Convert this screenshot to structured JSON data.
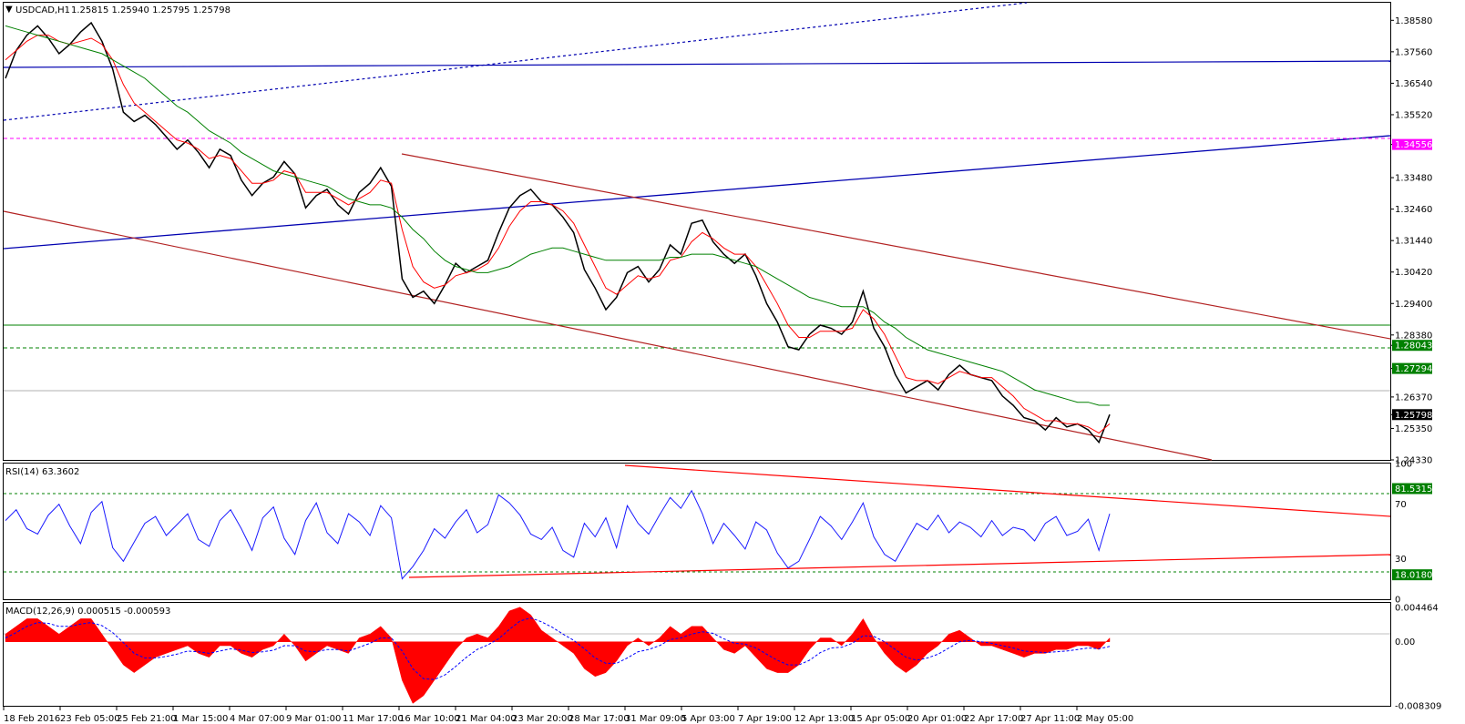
{
  "header": {
    "symbol": "USDCAD,H1",
    "ohlc": "1.25815 1.25940 1.25795 1.25798",
    "rsi": "RSI(14) 63.3602",
    "macd": "MACD(12,26,9) 0.000515 -0.000593"
  },
  "colors": {
    "price": "#000000",
    "ma_fast": "#ff0000",
    "ma_slow": "#008000",
    "blue_line": "#0000b0",
    "channel": "#b22222",
    "rsi_line": "#1a1aff",
    "rsi_trend": "#ff0000",
    "macd_hist": "#ff0000",
    "macd_signal": "#0000ff",
    "magenta_level": "#ff00ff",
    "green_level": "#008000",
    "current_price": "#000000"
  },
  "chart_data": [
    {
      "type": "line",
      "panel": "price",
      "title": "USDCAD,H1",
      "ylim": [
        1.2433,
        1.3915
      ],
      "grid": false,
      "y_ticks": [
        "1.38580",
        "1.37560",
        "1.36540",
        "1.35520",
        "1.34556",
        "1.33480",
        "1.32460",
        "1.31440",
        "1.30420",
        "1.29400",
        "1.28380",
        "1.28043",
        "1.27294",
        "1.26370",
        "1.25798",
        "1.25350",
        "1.24330"
      ],
      "x_ticks": [
        "18 Feb 2016",
        "23 Feb 05:00",
        "25 Feb 21:00",
        "1 Mar 15:00",
        "4 Mar 07:00",
        "9 Mar 01:00",
        "11 Mar 17:00",
        "16 Mar 10:00",
        "21 Mar 04:00",
        "23 Mar 20:00",
        "28 Mar 17:00",
        "31 Mar 09:00",
        "5 Apr 03:00",
        "7 Apr 19:00",
        "12 Apr 13:00",
        "15 Apr 05:00",
        "20 Apr 01:00",
        "22 Apr 17:00",
        "27 Apr 11:00",
        "2 May 05:00"
      ],
      "series": [
        {
          "style": "price",
          "values": [
            1.367,
            1.376,
            1.381,
            1.384,
            1.38,
            1.375,
            1.378,
            1.382,
            1.385,
            1.379,
            1.37,
            1.356,
            1.353,
            1.355,
            1.352,
            1.348,
            1.344,
            1.347,
            1.343,
            1.338,
            1.344,
            1.342,
            1.334,
            1.329,
            1.333,
            1.335,
            1.34,
            1.336,
            1.325,
            1.329,
            1.331,
            1.326,
            1.323,
            1.33,
            1.333,
            1.338,
            1.332,
            1.302,
            1.296,
            1.298,
            1.294,
            1.3,
            1.307,
            1.304,
            1.306,
            1.308,
            1.317,
            1.325,
            1.329,
            1.331,
            1.327,
            1.326,
            1.322,
            1.317,
            1.305,
            1.299,
            1.292,
            1.296,
            1.304,
            1.306,
            1.301,
            1.305,
            1.313,
            1.31,
            1.32,
            1.321,
            1.314,
            1.31,
            1.307,
            1.31,
            1.303,
            1.294,
            1.288,
            1.28,
            1.279,
            1.284,
            1.287,
            1.286,
            1.284,
            1.288,
            1.298,
            1.286,
            1.28,
            1.271,
            1.265,
            1.267,
            1.269,
            1.266,
            1.271,
            1.274,
            1.271,
            1.27,
            1.269,
            1.264,
            1.261,
            1.257,
            1.256,
            1.253,
            1.257,
            1.254,
            1.255,
            1.253,
            1.249,
            1.258
          ]
        },
        {
          "style": "ma_fast",
          "values": [
            1.373,
            1.376,
            1.379,
            1.381,
            1.381,
            1.379,
            1.378,
            1.379,
            1.38,
            1.378,
            1.373,
            1.365,
            1.359,
            1.356,
            1.353,
            1.35,
            1.347,
            1.346,
            1.344,
            1.341,
            1.342,
            1.341,
            1.337,
            1.333,
            1.333,
            1.334,
            1.337,
            1.336,
            1.33,
            1.33,
            1.33,
            1.328,
            1.326,
            1.328,
            1.33,
            1.334,
            1.333,
            1.318,
            1.306,
            1.301,
            1.299,
            1.3,
            1.303,
            1.304,
            1.305,
            1.307,
            1.312,
            1.319,
            1.324,
            1.327,
            1.327,
            1.326,
            1.324,
            1.32,
            1.313,
            1.306,
            1.299,
            1.297,
            1.3,
            1.303,
            1.302,
            1.303,
            1.308,
            1.309,
            1.314,
            1.317,
            1.315,
            1.312,
            1.31,
            1.31,
            1.306,
            1.3,
            1.294,
            1.287,
            1.283,
            1.283,
            1.285,
            1.285,
            1.285,
            1.286,
            1.292,
            1.289,
            1.284,
            1.277,
            1.27,
            1.269,
            1.269,
            1.268,
            1.27,
            1.272,
            1.271,
            1.27,
            1.27,
            1.267,
            1.264,
            1.26,
            1.258,
            1.256,
            1.256,
            1.255,
            1.255,
            1.254,
            1.252,
            1.255
          ]
        },
        {
          "style": "ma_slow",
          "values": [
            1.384,
            1.383,
            1.382,
            1.381,
            1.38,
            1.379,
            1.378,
            1.377,
            1.376,
            1.375,
            1.373,
            1.371,
            1.369,
            1.367,
            1.364,
            1.361,
            1.358,
            1.356,
            1.353,
            1.35,
            1.348,
            1.346,
            1.343,
            1.341,
            1.339,
            1.337,
            1.336,
            1.335,
            1.334,
            1.333,
            1.332,
            1.33,
            1.328,
            1.327,
            1.326,
            1.326,
            1.325,
            1.322,
            1.318,
            1.315,
            1.311,
            1.308,
            1.306,
            1.305,
            1.304,
            1.304,
            1.305,
            1.306,
            1.308,
            1.31,
            1.311,
            1.312,
            1.312,
            1.311,
            1.31,
            1.309,
            1.308,
            1.308,
            1.308,
            1.308,
            1.308,
            1.308,
            1.309,
            1.309,
            1.31,
            1.31,
            1.31,
            1.309,
            1.308,
            1.307,
            1.306,
            1.304,
            1.302,
            1.3,
            1.298,
            1.296,
            1.295,
            1.294,
            1.293,
            1.293,
            1.293,
            1.291,
            1.288,
            1.286,
            1.283,
            1.281,
            1.279,
            1.278,
            1.277,
            1.276,
            1.275,
            1.274,
            1.273,
            1.272,
            1.27,
            1.268,
            1.266,
            1.265,
            1.264,
            1.263,
            1.262,
            1.262,
            1.261,
            1.261
          ]
        }
      ]
    },
    {
      "type": "line",
      "panel": "rsi",
      "title": "RSI(14) 63.3602",
      "ylim": [
        0,
        100
      ],
      "y_ticks": [
        "100",
        "81.5315",
        "70",
        "30",
        "18.0180",
        "0"
      ],
      "series": [
        {
          "style": "rsi",
          "values": [
            58,
            66,
            52,
            48,
            62,
            70,
            54,
            41,
            64,
            72,
            38,
            28,
            42,
            56,
            61,
            47,
            55,
            63,
            44,
            39,
            58,
            66,
            52,
            36,
            60,
            68,
            45,
            33,
            58,
            71,
            49,
            41,
            63,
            57,
            47,
            69,
            60,
            15,
            24,
            36,
            52,
            45,
            57,
            66,
            49,
            55,
            77,
            71,
            62,
            48,
            44,
            53,
            36,
            31,
            56,
            46,
            60,
            38,
            69,
            56,
            48,
            62,
            75,
            67,
            80,
            63,
            41,
            56,
            47,
            37,
            57,
            51,
            34,
            23,
            28,
            44,
            61,
            54,
            44,
            57,
            71,
            46,
            33,
            28,
            42,
            56,
            51,
            62,
            49,
            57,
            53,
            46,
            58,
            47,
            53,
            51,
            43,
            56,
            61,
            47,
            50,
            59,
            36,
            63
          ]
        }
      ]
    },
    {
      "type": "area",
      "panel": "macd",
      "title": "MACD(12,26,9) 0.000515 -0.000593",
      "ylim": [
        -0.008309,
        0.004464
      ],
      "y_ticks": [
        "0.004464",
        "0.00",
        "-0.008309"
      ],
      "series": [
        {
          "style": "macd_hist",
          "values": [
            0.001,
            0.002,
            0.003,
            0.003,
            0.002,
            0.001,
            0.002,
            0.003,
            0.003,
            0.001,
            -0.001,
            -0.003,
            -0.004,
            -0.003,
            -0.002,
            -0.0015,
            -0.001,
            -0.0005,
            -0.0015,
            -0.002,
            -0.0005,
            -0.0005,
            -0.0015,
            -0.002,
            -0.001,
            -0.0005,
            0.001,
            -0.0005,
            -0.0025,
            -0.0015,
            -0.0005,
            -0.001,
            -0.0015,
            0.0005,
            0.001,
            0.002,
            0.0005,
            -0.005,
            -0.008,
            -0.007,
            -0.005,
            -0.003,
            -0.001,
            0.0005,
            0.001,
            0.0005,
            0.002,
            0.004,
            0.0045,
            0.0035,
            0.0015,
            0.0005,
            -0.0005,
            -0.0015,
            -0.0035,
            -0.0045,
            -0.004,
            -0.0025,
            -0.0005,
            0.0005,
            -0.0005,
            0.0005,
            0.002,
            0.001,
            0.002,
            0.002,
            0.0005,
            -0.001,
            -0.0015,
            -0.0005,
            -0.002,
            -0.0035,
            -0.004,
            -0.004,
            -0.003,
            -0.001,
            0.0005,
            0.0005,
            -0.0005,
            0.001,
            0.003,
            0.0005,
            -0.0015,
            -0.003,
            -0.004,
            -0.003,
            -0.0015,
            -0.0005,
            0.001,
            0.0015,
            0.0005,
            -0.0005,
            -0.0005,
            -0.001,
            -0.0015,
            -0.002,
            -0.0015,
            -0.0015,
            -0.001,
            -0.001,
            -0.0005,
            -0.0005,
            -0.001,
            0.0005
          ]
        },
        {
          "style": "macd_signal",
          "values": [
            0.0005,
            0.0012,
            0.002,
            0.0025,
            0.0024,
            0.002,
            0.002,
            0.0023,
            0.0025,
            0.0021,
            0.0012,
            -0.0001,
            -0.0015,
            -0.0021,
            -0.0021,
            -0.0019,
            -0.0016,
            -0.0012,
            -0.0013,
            -0.0015,
            -0.0012,
            -0.0009,
            -0.0011,
            -0.0014,
            -0.0013,
            -0.0011,
            -0.0005,
            -0.0005,
            -0.0012,
            -0.0013,
            -0.001,
            -0.001,
            -0.0012,
            -0.0007,
            -0.0002,
            0.0005,
            0.0005,
            -0.0012,
            -0.0035,
            -0.0048,
            -0.0049,
            -0.0043,
            -0.0032,
            -0.002,
            -0.001,
            -0.0004,
            0.0004,
            0.0016,
            0.0027,
            0.0031,
            0.0026,
            0.0019,
            0.001,
            0.0002,
            -0.0009,
            -0.0021,
            -0.0028,
            -0.0028,
            -0.0021,
            -0.0013,
            -0.001,
            -0.0005,
            0.0003,
            0.0005,
            0.001,
            0.0013,
            0.0011,
            0.0004,
            -0.0002,
            -0.0003,
            -0.0008,
            -0.0016,
            -0.0024,
            -0.003,
            -0.003,
            -0.0024,
            -0.0014,
            -0.0008,
            -0.0007,
            -0.0002,
            0.0008,
            0.0007,
            0.0,
            -0.001,
            -0.002,
            -0.0024,
            -0.0021,
            -0.0016,
            -0.0008,
            0.0,
            0.0002,
            0.0,
            -0.0002,
            -0.0005,
            -0.0008,
            -0.0012,
            -0.0013,
            -0.0014,
            -0.0013,
            -0.0012,
            -0.001,
            -0.0008,
            -0.0009,
            -0.0006
          ]
        }
      ]
    }
  ],
  "levels": {
    "magenta": "1.34556",
    "green_solid": "1.28043",
    "green_dashed": "1.27294",
    "current": "1.25798",
    "rsi_upper": "81.5315",
    "rsi_lower": "18.0180"
  }
}
